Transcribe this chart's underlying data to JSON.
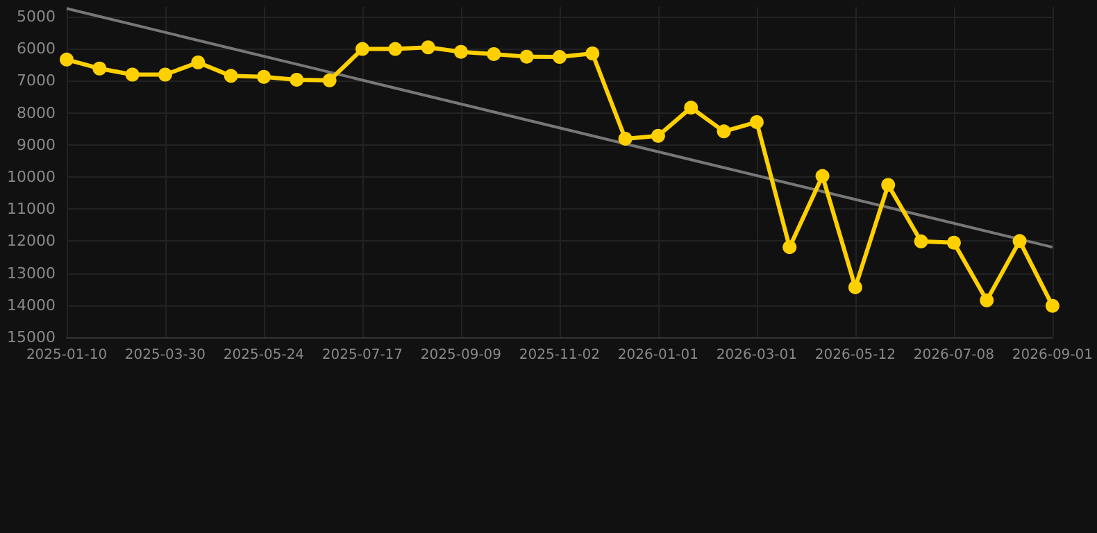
{
  "chart_data": {
    "type": "line",
    "categories": [
      "2025-01-10",
      null,
      null,
      "2025-03-30",
      null,
      null,
      "2025-05-24",
      null,
      null,
      "2025-07-17",
      null,
      null,
      "2025-09-09",
      null,
      null,
      "2025-11-02",
      null,
      null,
      "2026-01-01",
      null,
      null,
      "2026-03-01",
      null,
      null,
      "2026-05-12",
      null,
      null,
      "2026-07-08",
      null,
      null,
      "2026-09-01"
    ],
    "series": [
      {
        "color": "#ffd000",
        "marker": "circle",
        "values": [
          6340,
          6620,
          6810,
          6810,
          6430,
          6850,
          6880,
          6970,
          6990,
          6010,
          6010,
          5960,
          6100,
          6170,
          6250,
          6260,
          6150,
          8810,
          8720,
          7840,
          8580,
          8290,
          12190,
          9970,
          13440,
          10250,
          12010,
          12050,
          13850,
          12000,
          14020
        ]
      },
      {
        "type": "line",
        "color": "#777777",
        "marker": "none",
        "values": [
          4750,
          null,
          null,
          null,
          null,
          null,
          null,
          null,
          null,
          null,
          null,
          null,
          null,
          null,
          null,
          null,
          null,
          null,
          null,
          null,
          null,
          null,
          null,
          null,
          null,
          null,
          null,
          null,
          null,
          null,
          12190
        ]
      }
    ],
    "ylim": [
      15000,
      4700
    ],
    "yticks": [
      5000,
      6000,
      7000,
      8000,
      9000,
      10000,
      11000,
      12000,
      13000,
      14000,
      15000
    ],
    "grid": true
  }
}
